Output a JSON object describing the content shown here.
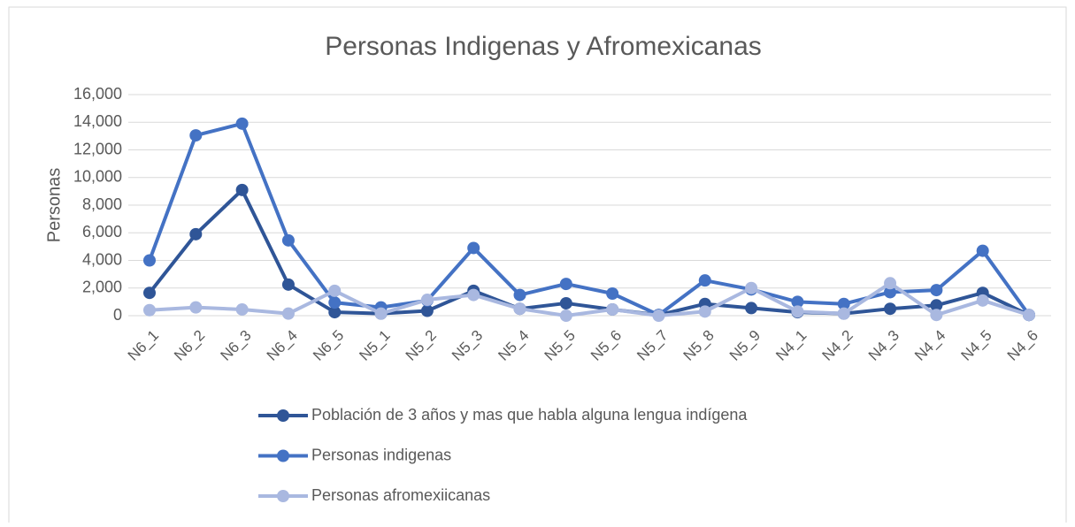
{
  "chart_data": {
    "type": "line",
    "title": "Personas Indigenas y Afromexicanas",
    "y_label": "Personas",
    "categories": [
      "N6_1",
      "N6_2",
      "N6_3",
      "N6_4",
      "N6_5",
      "N5_1",
      "N5_2",
      "N5_3",
      "N5_4",
      "N5_5",
      "N5_6",
      "N5_7",
      "N5_8",
      "N5_9",
      "N4_1",
      "N4_2",
      "N4_3",
      "N4_4",
      "N4_5",
      "N4_6"
    ],
    "series": [
      {
        "name": "Población de 3 años  y mas que habla alguna lengua indígena",
        "color": "#2f5597",
        "values": [
          1650,
          5900,
          9100,
          2250,
          250,
          150,
          350,
          1800,
          500,
          900,
          450,
          50,
          850,
          550,
          250,
          150,
          500,
          750,
          1650,
          50
        ]
      },
      {
        "name": "Personas indigenas",
        "color": "#4472c4",
        "values": [
          4000,
          13050,
          13900,
          5450,
          950,
          600,
          1100,
          4900,
          1500,
          2300,
          1600,
          50,
          2550,
          1900,
          1000,
          850,
          1700,
          1850,
          4700,
          50
        ]
      },
      {
        "name": "Personas afromexiicanas",
        "color": "#a9b8e0",
        "values": [
          400,
          600,
          450,
          150,
          1800,
          150,
          1150,
          1500,
          500,
          0,
          450,
          0,
          300,
          2000,
          300,
          150,
          2350,
          50,
          1100,
          50
        ]
      }
    ],
    "ylim": [
      0,
      16000
    ],
    "yticks": [
      0,
      {
        "value": 2000,
        "label": "2,000"
      },
      {
        "value": 4000,
        "label": "4,000"
      },
      {
        "value": 6000,
        "label": "6,000"
      },
      {
        "value": 8000,
        "label": "8,000"
      },
      {
        "value": 10000,
        "label": "10,000"
      },
      {
        "value": 12000,
        "label": "12,000"
      },
      {
        "value": 14000,
        "label": "14,000"
      },
      {
        "value": 16000,
        "label": "16,000"
      }
    ],
    "grid": true,
    "legend": "bottom"
  }
}
